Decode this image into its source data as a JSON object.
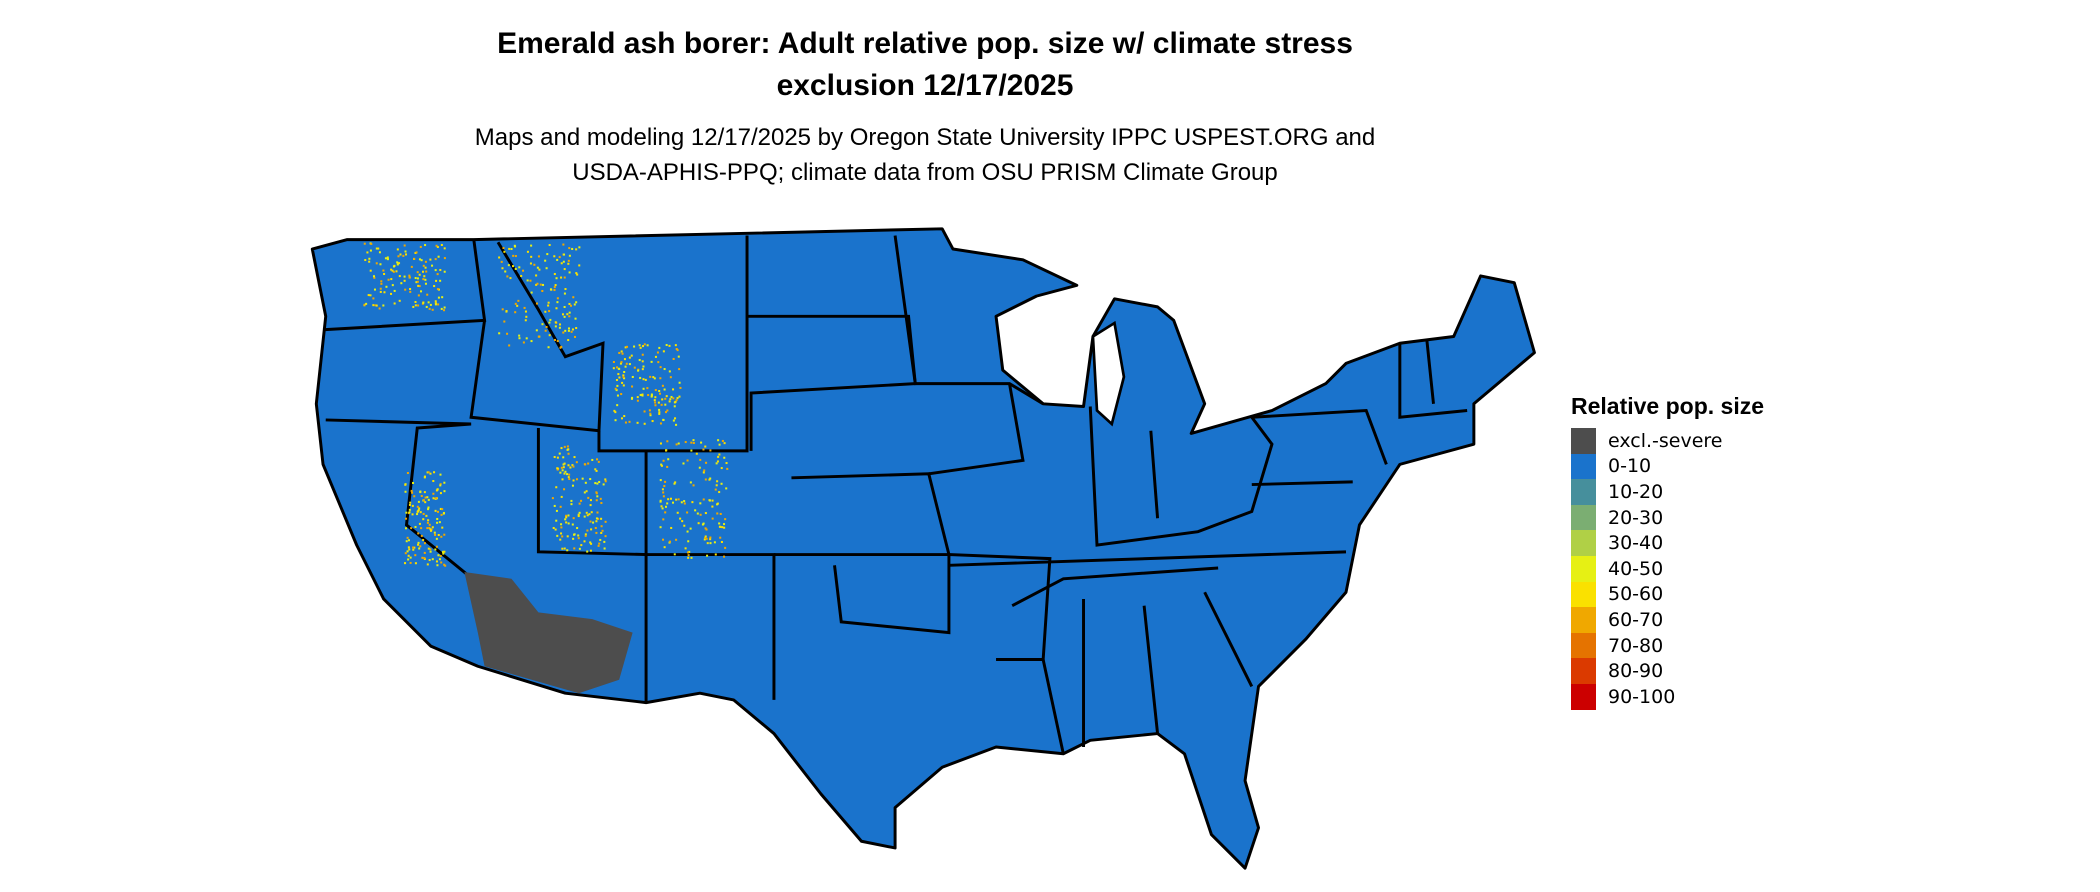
{
  "title_line1": "Emerald ash borer: Adult relative pop. size w/ climate stress",
  "title_line2": "exclusion 12/17/2025",
  "subtitle_line1": "Maps and modeling 12/17/2025 by Oregon State University IPPC USPEST.ORG and",
  "subtitle_line2": "USDA-APHIS-PPQ; climate data from OSU PRISM Climate Group",
  "legend": {
    "title": "Relative pop. size",
    "items": [
      {
        "label": "excl.-severe",
        "color": "#4d4d4d"
      },
      {
        "label": "0-10",
        "color": "#1a73cc"
      },
      {
        "label": "10-20",
        "color": "#468f9c"
      },
      {
        "label": "20-30",
        "color": "#7bae72"
      },
      {
        "label": "30-40",
        "color": "#b0d046"
      },
      {
        "label": "40-50",
        "color": "#e6f014"
      },
      {
        "label": "50-60",
        "color": "#fae100"
      },
      {
        "label": "60-70",
        "color": "#f0a800"
      },
      {
        "label": "70-80",
        "color": "#e57300"
      },
      {
        "label": "80-90",
        "color": "#db3a00"
      },
      {
        "label": "90-100",
        "color": "#cc0000"
      }
    ]
  },
  "map": {
    "base_color": "#1a73cc",
    "border_color": "#000000",
    "region": "Conterminous United States"
  }
}
